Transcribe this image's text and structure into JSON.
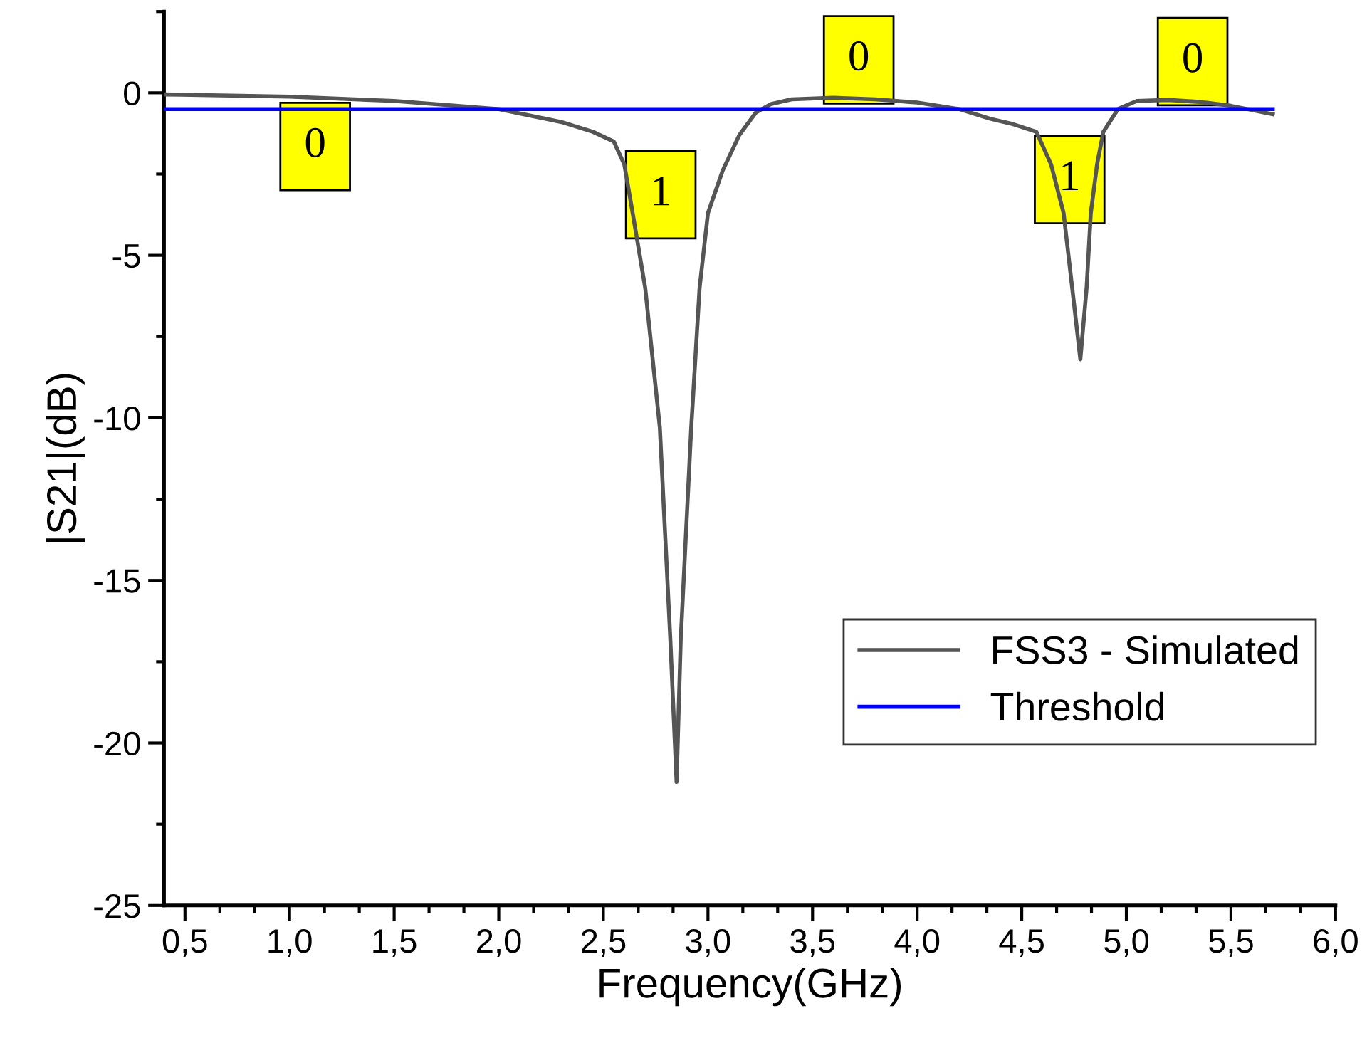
{
  "chart_data": {
    "type": "line",
    "xlabel": "Frequency(GHz)",
    "ylabel": "|S21|(dB)",
    "xlim": [
      0.4,
      6.0
    ],
    "ylim": [
      -25,
      2.5
    ],
    "xticks": [
      {
        "value": 0.5,
        "label": "0,5"
      },
      {
        "value": 1.0,
        "label": "1,0"
      },
      {
        "value": 1.5,
        "label": "1,5"
      },
      {
        "value": 2.0,
        "label": "2,0"
      },
      {
        "value": 2.5,
        "label": "2,5"
      },
      {
        "value": 3.0,
        "label": "3,0"
      },
      {
        "value": 3.5,
        "label": "3,5"
      },
      {
        "value": 4.0,
        "label": "4,0"
      },
      {
        "value": 4.5,
        "label": "4,5"
      },
      {
        "value": 5.0,
        "label": "5,0"
      },
      {
        "value": 5.5,
        "label": "5,5"
      },
      {
        "value": 6.0,
        "label": "6,0"
      }
    ],
    "yticks": [
      -25,
      -20,
      -15,
      -10,
      -5,
      0
    ],
    "grid": false,
    "legend": "right",
    "marker": "none",
    "line_style": "solid",
    "series": [
      {
        "name": "FSS3 - Simulated",
        "color": "#555555",
        "x": [
          0.4,
          1.0,
          1.5,
          2.0,
          2.3,
          2.45,
          2.55,
          2.6,
          2.64,
          2.7,
          2.77,
          2.82,
          2.85,
          2.87,
          2.92,
          2.96,
          3.0,
          3.07,
          3.15,
          3.23,
          3.3,
          3.4,
          3.6,
          3.8,
          4.0,
          4.2,
          4.35,
          4.45,
          4.57,
          4.64,
          4.7,
          4.75,
          4.78,
          4.81,
          4.83,
          4.86,
          4.89,
          4.96,
          5.05,
          5.2,
          5.35,
          5.5,
          5.7
        ],
        "values": [
          -0.05,
          -0.12,
          -0.25,
          -0.5,
          -0.9,
          -1.2,
          -1.5,
          -2.2,
          -3.7,
          -6.0,
          -10.3,
          -16.8,
          -21.2,
          -16.8,
          -10.3,
          -6.0,
          -3.7,
          -2.4,
          -1.3,
          -0.6,
          -0.35,
          -0.2,
          -0.15,
          -0.2,
          -0.3,
          -0.5,
          -0.8,
          -0.95,
          -1.2,
          -2.2,
          -3.7,
          -6.5,
          -8.2,
          -6.0,
          -3.7,
          -2.2,
          -1.2,
          -0.5,
          -0.25,
          -0.22,
          -0.28,
          -0.4,
          -0.66
        ]
      },
      {
        "name": "Threshold",
        "color": "#0000ff",
        "x": [
          0.4,
          5.7
        ],
        "values": [
          -0.5,
          -0.5
        ]
      }
    ],
    "annotations": [
      "0",
      "1",
      "0",
      "1",
      "0"
    ]
  }
}
